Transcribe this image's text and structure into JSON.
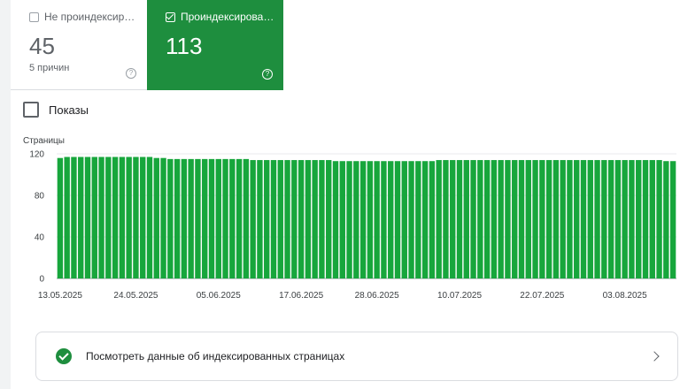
{
  "tiles": [
    {
      "label": "Не проиндексир…",
      "value": "45",
      "sub": "5 причин",
      "checked": false
    },
    {
      "label": "Проиндексирова…",
      "value": "113",
      "checked": true
    }
  ],
  "toggle": {
    "label": "Показы"
  },
  "action": {
    "label": "Посмотреть данные об индексированных страницах"
  },
  "colors": {
    "accent": "#1e8e3e",
    "bar": "#17a63c",
    "grid": "#e8eaed"
  },
  "chart_data": {
    "type": "bar",
    "ylabel": "Страницы",
    "ylim": [
      0,
      120
    ],
    "yticks": [
      0,
      40,
      80,
      120
    ],
    "xtick_labels": [
      "13.05.2025",
      "24.05.2025",
      "05.06.2025",
      "17.06.2025",
      "28.06.2025",
      "10.07.2025",
      "22.07.2025",
      "03.08.2025"
    ],
    "xtick_index": [
      0,
      11,
      23,
      35,
      46,
      58,
      70,
      82
    ],
    "series": [
      {
        "values": [
          116,
          117,
          117,
          117,
          117,
          117,
          117,
          117,
          117,
          117,
          117,
          117,
          117,
          117,
          116,
          116,
          115,
          115,
          115,
          115,
          115,
          115,
          115,
          115,
          115,
          115,
          115,
          115,
          114,
          114,
          114,
          114,
          114,
          114,
          114,
          114,
          114,
          114,
          114,
          114,
          113,
          113,
          113,
          113,
          113,
          113,
          113,
          113,
          113,
          113,
          113,
          113,
          113,
          113,
          113,
          114,
          114,
          114,
          114,
          114,
          114,
          114,
          114,
          114,
          114,
          114,
          114,
          114,
          114,
          114,
          114,
          114,
          114,
          114,
          114,
          114,
          114,
          114,
          114,
          114,
          114,
          114,
          114,
          114,
          114,
          114,
          114,
          114,
          113,
          113
        ]
      }
    ]
  }
}
